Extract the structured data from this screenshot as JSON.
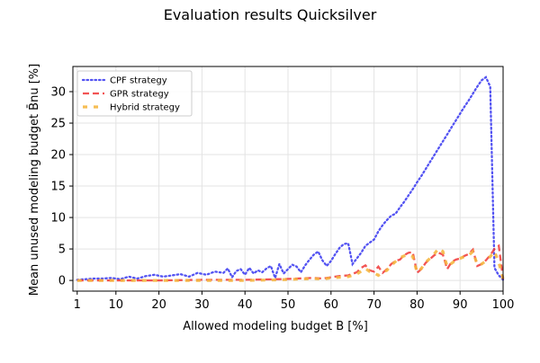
{
  "chart_data": {
    "type": "line",
    "title": "Evaluation results Quicksilver",
    "xlabel": "Allowed modeling budget B [%]",
    "ylabel": "Mean unused modeling budget B̄nu [%]",
    "xlim": [
      0,
      100
    ],
    "ylim": [
      -1.7,
      34
    ],
    "xticks": [
      1,
      10,
      20,
      30,
      40,
      50,
      60,
      70,
      80,
      90,
      100
    ],
    "yticks": [
      0,
      5,
      10,
      15,
      20,
      25,
      30
    ],
    "grid": true,
    "legend_position": "upper-left",
    "series": [
      {
        "name": "CPF strategy",
        "color": "#3b3bf0",
        "style": "dotted",
        "x": [
          1,
          3,
          5,
          7,
          9,
          11,
          13,
          15,
          17,
          19,
          21,
          23,
          25,
          27,
          29,
          31,
          33,
          35,
          36,
          37,
          38,
          39,
          40,
          41,
          42,
          43,
          44,
          45,
          46,
          47,
          48,
          49,
          50,
          51,
          52,
          53,
          54,
          55,
          56,
          57,
          58,
          59,
          60,
          61,
          62,
          63,
          64,
          65,
          66,
          67,
          68,
          69,
          70,
          71,
          72,
          73,
          74,
          75,
          76,
          77,
          78,
          79,
          80,
          81,
          82,
          83,
          84,
          85,
          86,
          87,
          88,
          89,
          90,
          91,
          92,
          93,
          94,
          95,
          96,
          97,
          98,
          99,
          100
        ],
        "y": [
          0.1,
          0.2,
          0.3,
          0.3,
          0.4,
          0.2,
          0.6,
          0.3,
          0.7,
          0.9,
          0.6,
          0.8,
          1.0,
          0.6,
          1.2,
          0.9,
          1.4,
          1.2,
          1.9,
          0.5,
          1.5,
          1.8,
          0.9,
          2.0,
          1.1,
          1.6,
          1.3,
          1.9,
          2.3,
          0.4,
          2.6,
          1.1,
          1.8,
          2.5,
          2.2,
          1.3,
          2.4,
          3.3,
          4.1,
          4.6,
          3.2,
          2.3,
          3.1,
          4.2,
          5.2,
          5.8,
          5.9,
          2.6,
          3.5,
          4.4,
          5.5,
          6.0,
          6.5,
          7.8,
          8.8,
          9.6,
          10.3,
          10.6,
          11.6,
          12.5,
          13.5,
          14.5,
          15.6,
          16.6,
          17.7,
          18.8,
          19.9,
          21.0,
          22.1,
          23.2,
          24.3,
          25.4,
          26.5,
          27.6,
          28.6,
          29.7,
          30.8,
          31.8,
          32.3,
          30.8,
          2.0,
          0.8,
          0.1
        ]
      },
      {
        "name": "GPR strategy",
        "color": "#f03c3c",
        "style": "dashed",
        "x": [
          1,
          10,
          20,
          30,
          40,
          48,
          52,
          56,
          58,
          60,
          62,
          64,
          66,
          67,
          68,
          69,
          70,
          71,
          72,
          73,
          74,
          75,
          76,
          77,
          78,
          79,
          80,
          81,
          82,
          83,
          84,
          85,
          86,
          87,
          88,
          89,
          90,
          91,
          92,
          93,
          94,
          95,
          96,
          97,
          98,
          99,
          100
        ],
        "y": [
          0.0,
          0.0,
          0.0,
          0.1,
          0.1,
          0.2,
          0.3,
          0.4,
          0.3,
          0.5,
          0.7,
          0.8,
          1.3,
          2.0,
          2.4,
          1.6,
          1.4,
          2.2,
          1.2,
          1.8,
          2.6,
          3.1,
          3.3,
          4.0,
          4.4,
          4.5,
          1.2,
          1.8,
          2.8,
          3.4,
          4.0,
          4.4,
          4.1,
          1.8,
          2.9,
          3.3,
          3.5,
          3.9,
          4.2,
          4.9,
          2.3,
          2.6,
          3.2,
          4.0,
          5.0,
          5.5,
          0.2
        ]
      },
      {
        "name": "Hybrid strategy",
        "color": "#f5b53e",
        "style": "dashed",
        "x": [
          1,
          10,
          20,
          30,
          40,
          48,
          52,
          56,
          58,
          60,
          62,
          64,
          66,
          68,
          69,
          70,
          71,
          72,
          73,
          74,
          75,
          76,
          77,
          78,
          79,
          80,
          81,
          82,
          83,
          84,
          85,
          86,
          87,
          88,
          89,
          90,
          91,
          92,
          93,
          94,
          95,
          96,
          97,
          98,
          99,
          100
        ],
        "y": [
          0.0,
          0.0,
          0.0,
          0.0,
          0.0,
          0.1,
          0.2,
          0.3,
          0.2,
          0.4,
          0.5,
          0.6,
          1.0,
          1.9,
          1.4,
          1.2,
          0.8,
          1.3,
          1.6,
          2.4,
          3.0,
          3.6,
          3.9,
          4.1,
          3.8,
          1.3,
          1.9,
          2.9,
          3.5,
          4.2,
          5.1,
          4.6,
          2.2,
          2.7,
          3.2,
          3.5,
          3.8,
          4.0,
          4.6,
          2.5,
          2.6,
          3.1,
          3.8,
          4.6,
          2.9,
          0.2
        ]
      }
    ]
  }
}
